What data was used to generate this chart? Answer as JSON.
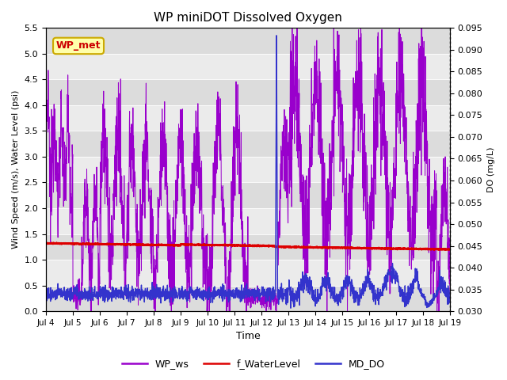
{
  "title": "WP miniDOT Dissolved Oxygen",
  "ylabel_left": "Wind Speed (m/s), Water Level (psi)",
  "ylabel_right": "DO (mg/L)",
  "xlabel": "Time",
  "ylim_left": [
    0.0,
    5.5
  ],
  "ylim_right": [
    0.03,
    0.095
  ],
  "yticks_left": [
    0.0,
    0.5,
    1.0,
    1.5,
    2.0,
    2.5,
    3.0,
    3.5,
    4.0,
    4.5,
    5.0,
    5.5
  ],
  "yticks_right": [
    0.03,
    0.035,
    0.04,
    0.045,
    0.05,
    0.055,
    0.06,
    0.065,
    0.07,
    0.075,
    0.08,
    0.085,
    0.09,
    0.095
  ],
  "xtick_labels": [
    "Jul 4",
    "Jul 5",
    "Jul 6",
    "Jul 7",
    "Jul 8",
    "Jul 9",
    "Jul 10",
    "Jul 11",
    "Jul 12",
    "Jul 13",
    "Jul 14",
    "Jul 15",
    "Jul 16",
    "Jul 17",
    "Jul 18",
    "Jul 19"
  ],
  "wp_ws_color": "#9900CC",
  "f_waterlevel_color": "#DD0000",
  "md_do_color": "#3333CC",
  "annotation_label": "WP_met",
  "annotation_bg": "#FFFFAA",
  "annotation_border": "#CCAA00",
  "annotation_text_color": "#CC0000",
  "legend_labels": [
    "WP_ws",
    "f_WaterLevel",
    "MD_DO"
  ],
  "band_colors": [
    "#DCDCDC",
    "#EBEBEB"
  ],
  "fig_bg": "#FFFFFF"
}
